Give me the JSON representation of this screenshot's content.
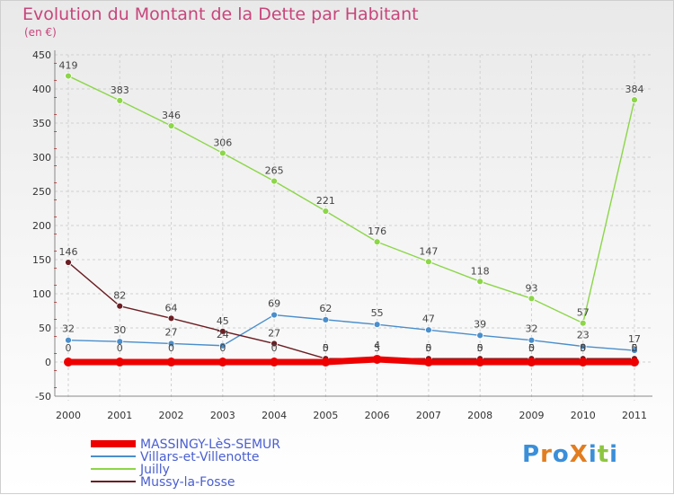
{
  "header": {
    "title": "Evolution du Montant de la Dette par Habitant",
    "unit": "(en €)"
  },
  "logo": {
    "text": "ProXiti"
  },
  "chart_data": {
    "type": "line",
    "title": "Evolution du Montant de la Dette par Habitant",
    "subtitle": "(en €)",
    "xlabel": "",
    "ylabel": "",
    "x": [
      2000,
      2001,
      2002,
      2003,
      2004,
      2005,
      2006,
      2007,
      2008,
      2009,
      2010,
      2011
    ],
    "ylim": [
      -50,
      450
    ],
    "yticks": [
      -50,
      0,
      50,
      100,
      150,
      200,
      250,
      300,
      350,
      400,
      450
    ],
    "grid": true,
    "legend_position": "bottom-left",
    "series": [
      {
        "name": "MASSINGY-LèS-SEMUR",
        "color": "#ee0000",
        "values": [
          0,
          0,
          0,
          0,
          0,
          0,
          4,
          0,
          0,
          0,
          0,
          0
        ]
      },
      {
        "name": "Villars-et-Villenotte",
        "color": "#4a8ecb",
        "values": [
          32,
          30,
          27,
          24,
          69,
          62,
          55,
          47,
          39,
          32,
          23,
          17
        ]
      },
      {
        "name": "Juilly",
        "color": "#8cd648",
        "values": [
          419,
          383,
          346,
          306,
          265,
          221,
          176,
          147,
          118,
          93,
          57,
          384
        ]
      },
      {
        "name": "Mussy-la-Fosse",
        "color": "#6b1e23",
        "values": [
          146,
          82,
          64,
          45,
          27,
          5,
          5,
          5,
          5,
          5,
          5,
          5
        ]
      }
    ]
  }
}
